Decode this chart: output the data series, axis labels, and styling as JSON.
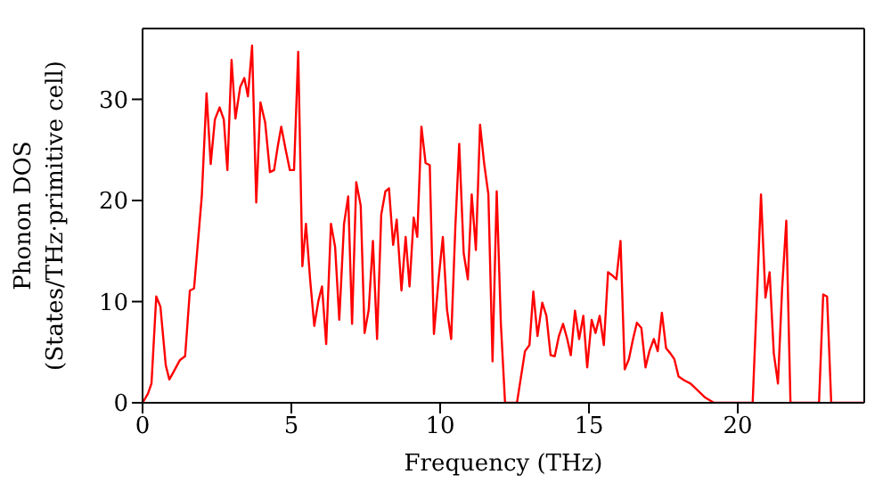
{
  "chart_data": {
    "type": "line",
    "xlabel": "Frequency (THz)",
    "ylabel": "Phonon DOS\n(States/THz·primitive cell)",
    "xlim": [
      0,
      24.25
    ],
    "xticks": [
      0,
      5,
      10,
      15,
      20
    ],
    "ylim": [
      0,
      37
    ],
    "yticks": [
      0,
      10,
      20,
      30
    ],
    "marker": "none",
    "line_style": "solid",
    "series": [
      {
        "color": "#ff0000",
        "x": [
          0,
          0.18,
          0.3,
          0.46,
          0.6,
          0.78,
          0.9,
          1.07,
          1.25,
          1.43,
          1.59,
          1.73,
          1.99,
          2.15,
          2.29,
          2.43,
          2.59,
          2.73,
          2.85,
          2.99,
          3.12,
          3.28,
          3.42,
          3.54,
          3.68,
          3.82,
          3.96,
          4.12,
          4.28,
          4.42,
          4.54,
          4.66,
          4.81,
          4.95,
          5.09,
          5.23,
          5.37,
          5.49,
          5.63,
          5.77,
          5.91,
          6.03,
          6.17,
          6.33,
          6.47,
          6.61,
          6.77,
          6.91,
          7.04,
          7.18,
          7.33,
          7.46,
          7.6,
          7.74,
          7.88,
          8.02,
          8.16,
          8.28,
          8.42,
          8.54,
          8.7,
          8.84,
          8.97,
          9.11,
          9.23,
          9.37,
          9.51,
          9.65,
          9.79,
          9.95,
          10.09,
          10.23,
          10.37,
          10.51,
          10.64,
          10.79,
          10.93,
          11.06,
          11.2,
          11.34,
          11.48,
          11.62,
          11.76,
          11.9,
          12.04,
          12.18,
          12.58,
          12.85,
          13,
          13.13,
          13.27,
          13.43,
          13.57,
          13.71,
          13.85,
          13.99,
          14.13,
          14.27,
          14.39,
          14.53,
          14.67,
          14.81,
          14.94,
          15.09,
          15.22,
          15.36,
          15.5,
          15.64,
          15.78,
          15.92,
          16.06,
          16.2,
          16.34,
          16.48,
          16.61,
          16.76,
          16.9,
          17.03,
          17.18,
          17.31,
          17.45,
          17.59,
          17.73,
          17.87,
          18.01,
          18.21,
          18.41,
          18.7,
          18.91,
          19.2,
          20.5,
          20.78,
          20.93,
          21.07,
          21.21,
          21.35,
          21.49,
          21.63,
          21.77,
          22.73,
          22.87,
          23,
          23.14,
          24.25
        ],
        "values": [
          0,
          0.9,
          1.9,
          10.5,
          9.5,
          3.7,
          2.3,
          3.2,
          4.2,
          4.6,
          11.1,
          11.3,
          20.4,
          30.6,
          23.6,
          28,
          29.2,
          28,
          23,
          33.9,
          28.1,
          31.2,
          32.1,
          30.3,
          35.3,
          19.8,
          29.7,
          27.7,
          22.8,
          23,
          25.3,
          27.3,
          25,
          23,
          23,
          34.7,
          13.5,
          17.7,
          12.2,
          7.6,
          10.1,
          11.5,
          5.8,
          17.7,
          15.4,
          8.2,
          17.7,
          20.4,
          7.8,
          21.8,
          19.5,
          6.9,
          9.2,
          16,
          6.3,
          18.6,
          20.9,
          21.2,
          15.6,
          18.1,
          11.1,
          16.4,
          11.5,
          18.3,
          16.4,
          27.3,
          23.7,
          23.5,
          6.8,
          12.3,
          16.4,
          9.2,
          6.3,
          17.4,
          25.6,
          14.8,
          12.2,
          20.6,
          15.1,
          27.5,
          23.6,
          20.6,
          4.1,
          20.9,
          7.8,
          0,
          0,
          5.1,
          5.7,
          11,
          6.6,
          9.9,
          8.6,
          4.7,
          4.6,
          6.6,
          7.8,
          6.3,
          4.7,
          9.1,
          6.3,
          8.6,
          3.5,
          8.2,
          6.9,
          8.6,
          5.7,
          12.9,
          12.6,
          12.2,
          16,
          3.3,
          4.3,
          6.3,
          7.9,
          7.4,
          3.5,
          5.1,
          6.3,
          5.1,
          8.9,
          5.4,
          4.9,
          4.3,
          2.6,
          2.2,
          1.9,
          1.1,
          0.5,
          0,
          0,
          20.6,
          10.4,
          12.9,
          4.9,
          1.9,
          11.3,
          18,
          0,
          0,
          10.7,
          10.5,
          0,
          0
        ]
      }
    ]
  }
}
